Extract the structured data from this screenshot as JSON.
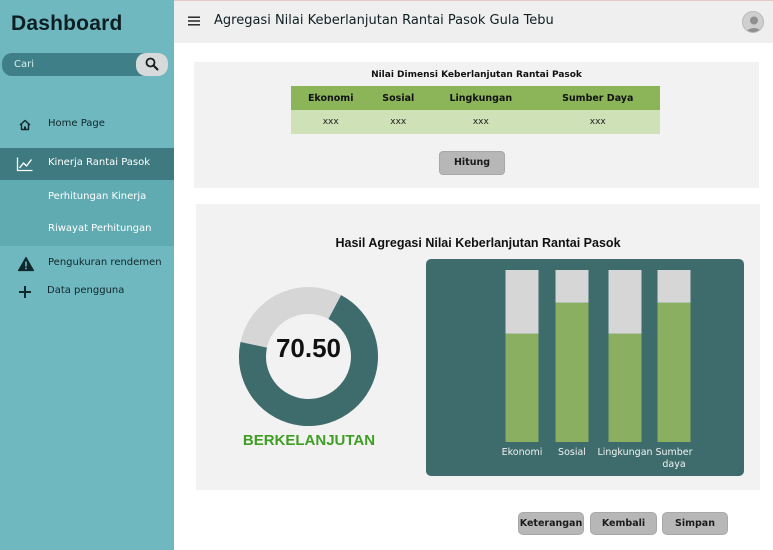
{
  "sidebar": {
    "brand": "Dashboard",
    "search": {
      "placeholder": "Cari",
      "icon": "search-icon"
    },
    "items": [
      {
        "label": "Home Page",
        "icon": "home-icon"
      },
      {
        "label": "Kinerja Rantai Pasok",
        "icon": "line-chart-icon",
        "active": true,
        "children": [
          {
            "label": "Perhitungan Kinerja"
          },
          {
            "label": "Riwayat Perhitungan"
          }
        ]
      },
      {
        "label": "Pengukuran rendemen",
        "icon": "warning-icon"
      },
      {
        "label": "Data pengguna",
        "icon": "plus-icon"
      }
    ]
  },
  "header": {
    "title": "Agregasi Nilai Keberlanjutan Rantai Pasok Gula Tebu",
    "menu_icon": "hamburger-icon",
    "avatar_icon": "user-avatar-icon"
  },
  "dimension_table": {
    "title": "Nilai Dimensi Keberlanjutan Rantai Pasok",
    "headers": [
      "Ekonomi",
      "Sosial",
      "Lingkungan",
      "Sumber Daya"
    ],
    "values": [
      "xxx",
      "xxx",
      "xxx",
      "xxx"
    ],
    "button": "Hitung"
  },
  "result": {
    "title": "Hasil Agregasi Nilai Keberlanjutan Rantai Pasok",
    "score": "70.50",
    "score_fraction": 0.705,
    "status": "BERKELANJUTAN"
  },
  "chart_data": {
    "type": "bar",
    "stacked": true,
    "categories": [
      "Ekonomi",
      "Sosial",
      "Lingkungan",
      "Sumber daya"
    ],
    "series": [
      {
        "values": [
          0.63,
          0.81,
          0.63,
          0.81
        ],
        "color": "#8aaf60"
      },
      {
        "values": [
          0.37,
          0.19,
          0.37,
          0.19
        ],
        "color": "#d6d6d6"
      }
    ],
    "ylim": [
      0,
      1
    ],
    "grid": false,
    "legend": "none"
  },
  "actions": {
    "keterangan": "Keterangan",
    "kembali": "Kembali",
    "simpan": "Simpan"
  },
  "colors": {
    "sidebar": "#6fb8bf",
    "active_nav": "#3e7a80",
    "gauge_fill": "#3e6b6b",
    "gauge_track": "#d6d6d6",
    "status": "#3f9e23",
    "table_header": "#8cb55a",
    "table_row": "#cfe1b7"
  }
}
